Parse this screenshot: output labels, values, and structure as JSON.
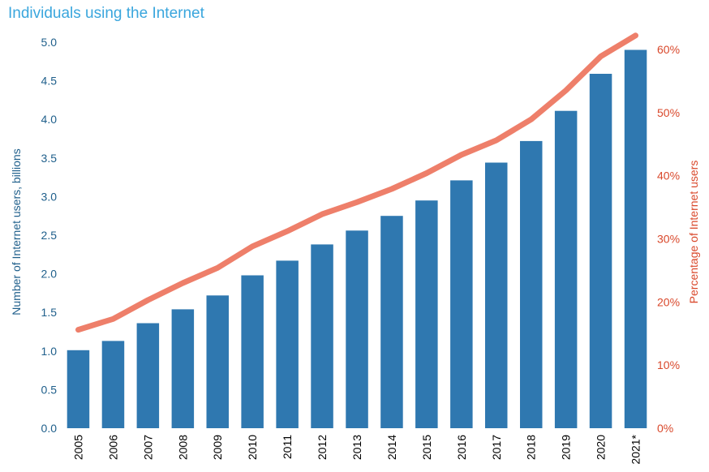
{
  "title": "Individuals using the Internet",
  "colors": {
    "title": "#3aa6dd",
    "bars": "#2f78b0",
    "line": "#ee7f6a",
    "left_axis": "#1f5f8b",
    "right_axis": "#d9482b"
  },
  "chart_data": {
    "type": "bar+line",
    "title": "Individuals using the Internet",
    "categories": [
      "2005",
      "2006",
      "2007",
      "2008",
      "2009",
      "2010",
      "2011",
      "2012",
      "2013",
      "2014",
      "2015",
      "2016",
      "2017",
      "2018",
      "2019",
      "2020",
      "2021*"
    ],
    "series": [
      {
        "name": "Number of Internet users, billions",
        "type": "bar",
        "axis": "left",
        "values": [
          1.01,
          1.13,
          1.36,
          1.54,
          1.72,
          1.98,
          2.17,
          2.38,
          2.56,
          2.75,
          2.95,
          3.21,
          3.44,
          3.72,
          4.11,
          4.59,
          4.9
        ]
      },
      {
        "name": "Percentage of Internet users",
        "type": "line",
        "axis": "right",
        "values": [
          15.6,
          17.3,
          20.3,
          23.0,
          25.4,
          28.8,
          31.2,
          33.9,
          35.8,
          37.9,
          40.4,
          43.3,
          45.6,
          48.9,
          53.5,
          58.9,
          62.2
        ]
      }
    ],
    "ylabel": "Number of Internet users, billions",
    "ylim": [
      0,
      5
    ],
    "yticks": [
      "0.0",
      "0.5",
      "1.0",
      "1.5",
      "2.0",
      "2.5",
      "3.0",
      "3.5",
      "4.0",
      "4.5",
      "5.0"
    ],
    "y2label": "Percentage of Internet users",
    "y2lim": [
      0,
      65
    ],
    "y2ticks": [
      "0%",
      "10%",
      "20%",
      "30%",
      "40%",
      "50%",
      "60%"
    ],
    "grid": false,
    "legend": "none"
  }
}
